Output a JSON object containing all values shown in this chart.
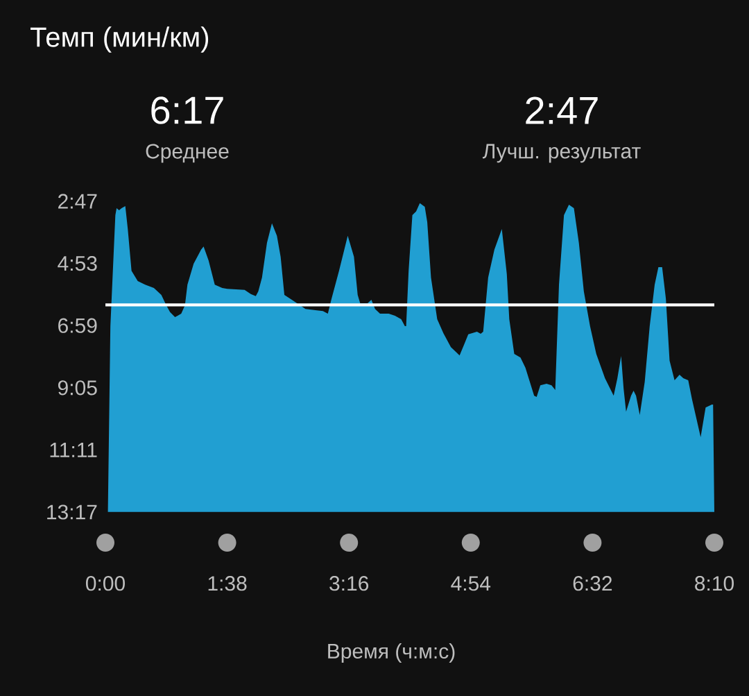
{
  "chart_data": {
    "type": "area",
    "title": "Темп (мин/км)",
    "xlabel": "Время (ч:м:с)",
    "annotations": [
      "6:17",
      "Среднее",
      "2:47",
      "Лучш. результат"
    ],
    "x": [
      2,
      4,
      8,
      9,
      11,
      13,
      16,
      18,
      21,
      26,
      32,
      39,
      45,
      49,
      52,
      56,
      61,
      64,
      66,
      71,
      77,
      79,
      83,
      88,
      94,
      98,
      105,
      112,
      117,
      121,
      123,
      126,
      130,
      134,
      138,
      141,
      144,
      150,
      155,
      161,
      169,
      175,
      179,
      182,
      188,
      195,
      200,
      203,
      205,
      211,
      214,
      217,
      221,
      228,
      233,
      238,
      241,
      242,
      244,
      247,
      250,
      253,
      257,
      259,
      262,
      267,
      272,
      278,
      285,
      289,
      292,
      299,
      302,
      304,
      308,
      313,
      319,
      323,
      325,
      329,
      334,
      338,
      345,
      347,
      350,
      355,
      359,
      362,
      365,
      369,
      373,
      377,
      381,
      385,
      390,
      395,
      402,
      409,
      412,
      415,
      417,
      419,
      423,
      425,
      427,
      430,
      434,
      438,
      442,
      445,
      448,
      451,
      454,
      458,
      462,
      465,
      469,
      472,
      479,
      483,
      488,
      489,
      490
    ],
    "series": [
      {
        "color": "#219fd2",
        "values": [
          13.28,
          7.0,
          3.25,
          3.02,
          3.09,
          3.02,
          2.95,
          3.72,
          5.13,
          5.48,
          5.6,
          5.71,
          5.95,
          6.3,
          6.53,
          6.7,
          6.58,
          6.3,
          5.6,
          4.89,
          4.42,
          4.31,
          4.78,
          5.6,
          5.71,
          5.74,
          5.76,
          5.78,
          5.92,
          5.99,
          5.83,
          5.36,
          4.19,
          3.53,
          3.95,
          4.66,
          5.95,
          6.11,
          6.25,
          6.42,
          6.46,
          6.49,
          6.58,
          6.07,
          5.13,
          3.95,
          4.66,
          5.95,
          6.23,
          6.23,
          6.11,
          6.42,
          6.58,
          6.58,
          6.65,
          6.77,
          7.0,
          7.0,
          5.13,
          3.25,
          3.13,
          2.85,
          2.97,
          3.49,
          5.36,
          6.77,
          7.24,
          7.71,
          7.99,
          7.59,
          7.28,
          7.19,
          7.26,
          7.19,
          5.36,
          4.42,
          3.72,
          5.24,
          6.77,
          7.94,
          8.06,
          8.41,
          9.35,
          9.39,
          9.0,
          8.95,
          9.0,
          9.16,
          5.6,
          3.25,
          2.9,
          3.02,
          4.19,
          5.83,
          7.0,
          7.94,
          8.76,
          9.35,
          8.76,
          8.01,
          9.11,
          9.89,
          9.35,
          9.18,
          9.35,
          10.0,
          8.88,
          7.0,
          5.6,
          5.01,
          5.01,
          6.07,
          8.17,
          8.83,
          8.64,
          8.76,
          8.83,
          9.46,
          10.75,
          9.75,
          9.65,
          9.65,
          13.28
        ]
      }
    ],
    "xlim": [
      0,
      490
    ],
    "xticks": [
      {
        "value": 0,
        "label": "0:00"
      },
      {
        "value": 98,
        "label": "1:38"
      },
      {
        "value": 196,
        "label": "3:16"
      },
      {
        "value": 294,
        "label": "4:54"
      },
      {
        "value": 392,
        "label": "6:32"
      },
      {
        "value": 490,
        "label": "8:10"
      }
    ],
    "ylim": [
      13.2833,
      2.7833
    ],
    "yticks": [
      {
        "value": 2.7833,
        "label": "2:47"
      },
      {
        "value": 4.8833,
        "label": "4:53"
      },
      {
        "value": 6.9833,
        "label": "6:59"
      },
      {
        "value": 9.0833,
        "label": "9:05"
      },
      {
        "value": 11.1833,
        "label": "11:11"
      },
      {
        "value": 13.2833,
        "label": "13:17"
      }
    ],
    "ref_lines": [
      {
        "axis": "y",
        "value": 6.2833,
        "color": "#ffffff"
      }
    ]
  }
}
